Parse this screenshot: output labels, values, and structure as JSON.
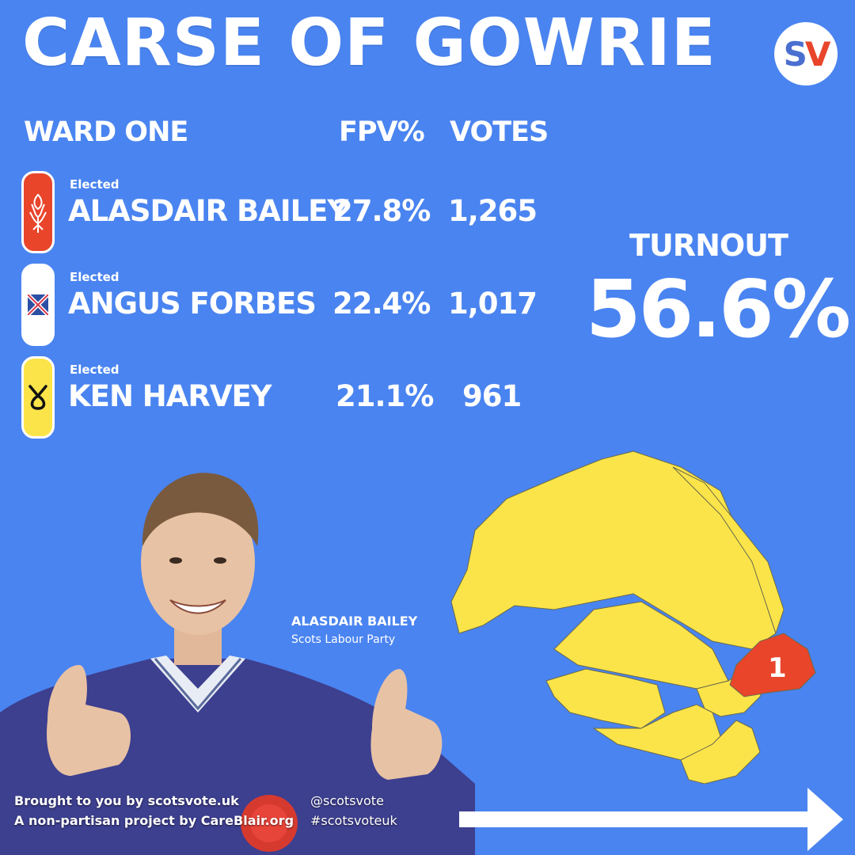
{
  "header": {
    "title": "CARSE OF GOWRIE",
    "logo_s": "S",
    "logo_v": "V"
  },
  "table": {
    "ward_label": "WARD ONE",
    "fpv_label": "FPV%",
    "votes_label": "VOTES",
    "candidates": [
      {
        "status": "Elected",
        "name": "ALASDAIR BAILEY",
        "fpv": "27.8%",
        "votes": "1,265",
        "color": "#e8452b",
        "icon": "thistle-rose-icon"
      },
      {
        "status": "Elected",
        "name": "ANGUS FORBES",
        "fpv": "22.4%",
        "votes": "1,017",
        "color": "#ffffff",
        "icon": "saltire-union-icon"
      },
      {
        "status": "Elected",
        "name": "KEN HARVEY",
        "fpv": "21.1%",
        "votes": "961",
        "color": "#fbe44a",
        "icon": "snp-logo-icon"
      }
    ]
  },
  "turnout": {
    "label": "TURNOUT",
    "value": "56.6%"
  },
  "photo_caption": {
    "name": "ALASDAIR BAILEY",
    "party": "Scots Labour Party"
  },
  "map": {
    "highlight_label": "1",
    "highlight_color": "#e8452b",
    "base_color": "#fbe44a"
  },
  "footer": {
    "line1_prefix": "Brought to you by ",
    "line1_site": "scotsvote.uk",
    "line2_prefix": "A non-partisan project by ",
    "line2_site": "CareBlair.org",
    "handle": "@scotsvote",
    "hashtag": "#scotsvoteuk"
  },
  "colors": {
    "background": "#4a84f0"
  }
}
